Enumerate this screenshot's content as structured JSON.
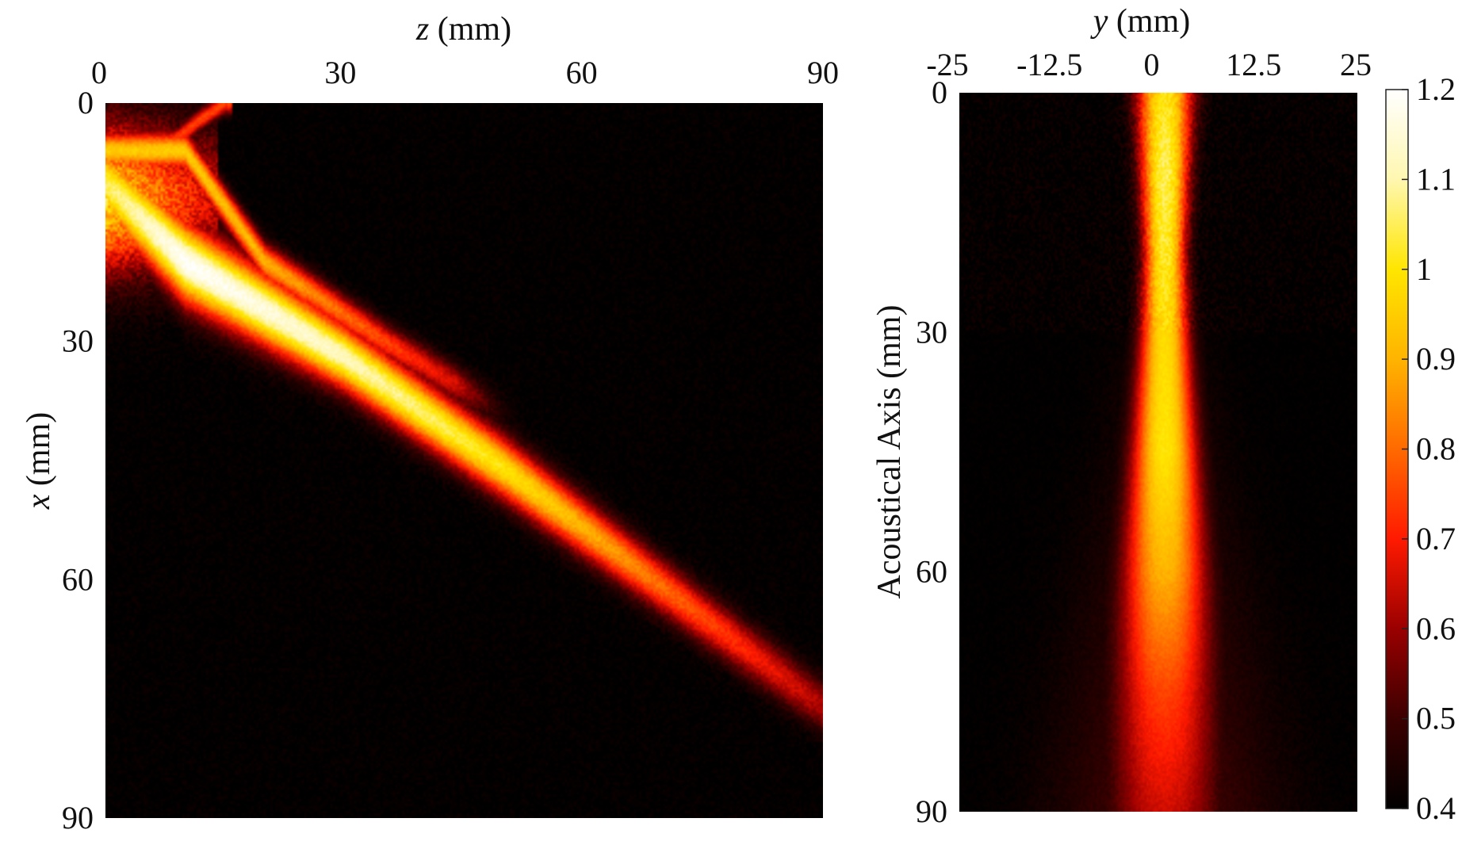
{
  "colorscale": {
    "name": "hot",
    "stops": [
      "#000000",
      "#3b0000",
      "#9a0000",
      "#ff1a00",
      "#ff6a00",
      "#ffb400",
      "#ffe600",
      "#fff7b0",
      "#ffffff"
    ]
  },
  "chart_data": [
    {
      "type": "heatmap",
      "title": "",
      "xlabel": {
        "italic": "z",
        "unit": " (mm)"
      },
      "ylabel": {
        "italic": "x",
        "unit": " (mm)"
      },
      "xlim": [
        0,
        90
      ],
      "ylim": [
        0,
        90
      ],
      "xticks": [
        "0",
        "30",
        "60",
        "90"
      ],
      "yticks": [
        "0",
        "30",
        "60",
        "90"
      ],
      "x_axis_position": "top",
      "y_reversed": true,
      "beam": {
        "main_centerline": [
          [
            0,
            10
          ],
          [
            10,
            20
          ],
          [
            30,
            32
          ],
          [
            50,
            46
          ],
          [
            70,
            61
          ],
          [
            90,
            76
          ]
        ],
        "main_half_width_mm": [
          4.5,
          5,
          4,
          3.8,
          3.4,
          3.2
        ],
        "main_peak": [
          1.05,
          1.2,
          1.12,
          1.0,
          0.8,
          0.62
        ],
        "secondary_centerline": [
          [
            10,
            6
          ],
          [
            20,
            20
          ],
          [
            35,
            30
          ],
          [
            50,
            39
          ]
        ],
        "secondary_peak": [
          0.95,
          0.9,
          0.75,
          0.6
        ],
        "side_lobe_centerline": [
          [
            7,
            6
          ],
          [
            12,
            2
          ],
          [
            15,
            0
          ]
        ],
        "side_lobe_peak": 0.75
      }
    },
    {
      "type": "heatmap",
      "title": "",
      "xlabel": {
        "italic": "y",
        "unit": " (mm)"
      },
      "ylabel": {
        "text": "Acoustical Axis (mm)"
      },
      "xlim": [
        -25,
        25
      ],
      "ylim": [
        0,
        90
      ],
      "xticks": [
        "-25",
        "-12.5",
        "0",
        "12.5",
        "25"
      ],
      "yticks": [
        "0",
        "30",
        "60",
        "90"
      ],
      "x_axis_position": "top",
      "y_reversed": true,
      "beam": {
        "center_y": 0.8,
        "profile_axial": [
          0,
          10,
          20,
          30,
          45,
          60,
          75,
          90
        ],
        "half_width_mm": [
          3.5,
          3.0,
          2.6,
          3.0,
          4.0,
          5.2,
          6.2,
          7.0
        ],
        "peak": [
          1.0,
          1.05,
          1.02,
          0.98,
          1.0,
          0.9,
          0.75,
          0.65
        ]
      }
    }
  ],
  "colorbar": {
    "range": [
      0.4,
      1.2
    ],
    "ticks": [
      "1.2",
      "1.1",
      "1",
      "0.9",
      "0.8",
      "0.7",
      "0.6",
      "0.5",
      "0.4"
    ]
  }
}
